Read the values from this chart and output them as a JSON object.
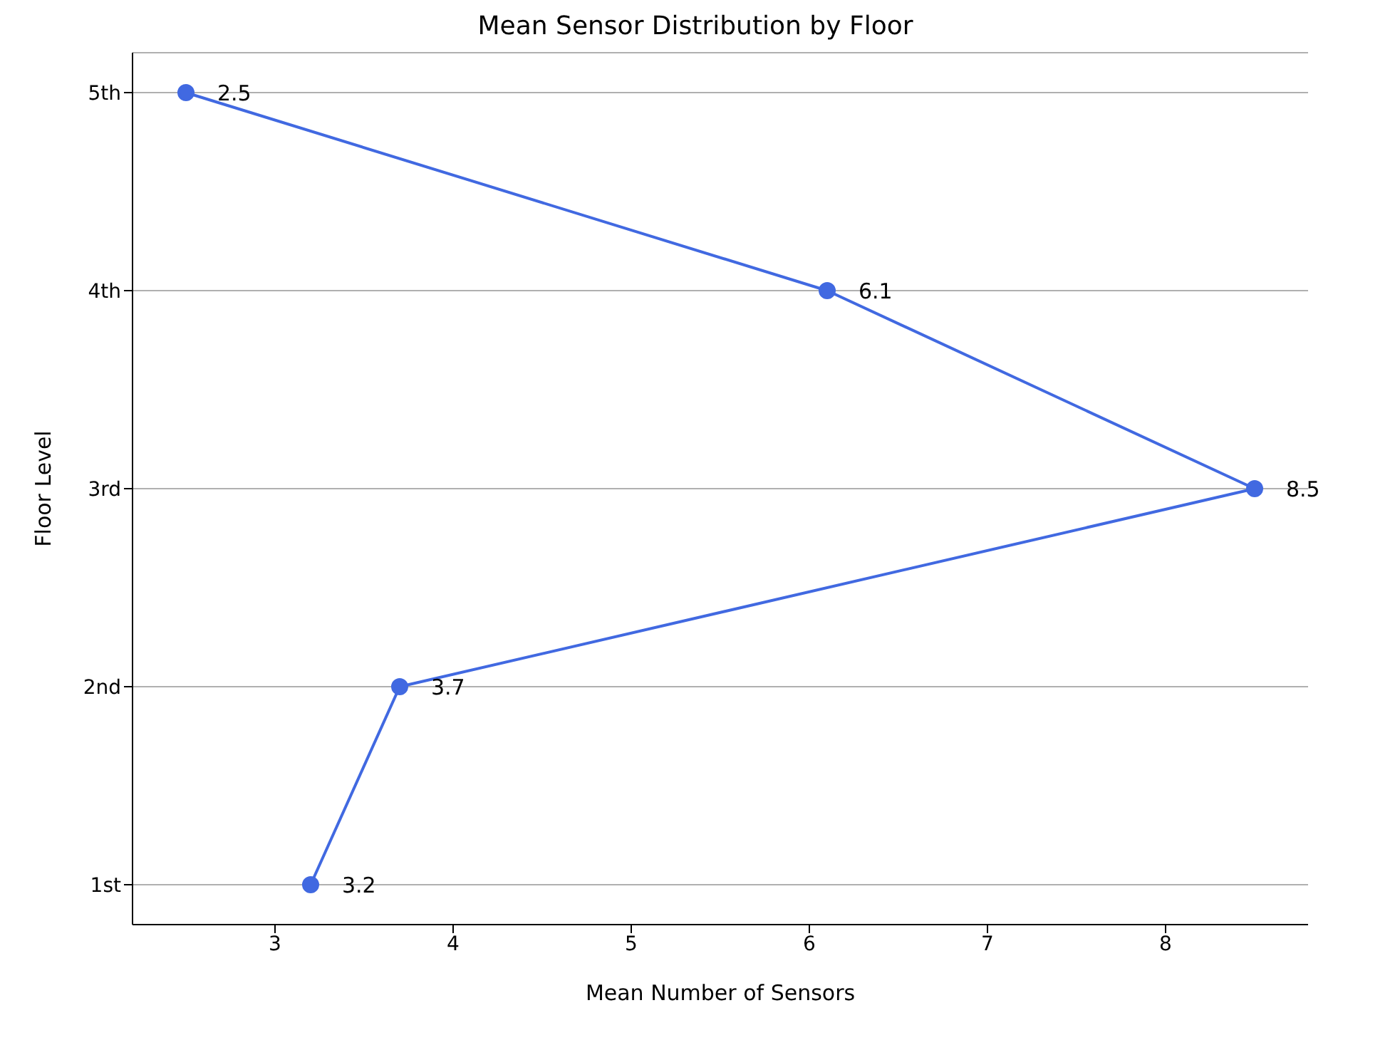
{
  "chart_data": {
    "type": "line",
    "orientation": "horizontal",
    "title": "Mean Sensor Distribution by Floor",
    "xlabel": "Mean Number of Sensors",
    "ylabel": "Floor Level",
    "categories": [
      "5th",
      "4th",
      "3rd",
      "2nd",
      "1st"
    ],
    "series": [
      {
        "color": "#4169e1",
        "values": [
          2.5,
          6.1,
          8.5,
          3.7,
          3.2
        ]
      }
    ],
    "xlim": [
      2.2,
      8.8
    ],
    "xticks": [
      3,
      4,
      5,
      6,
      7,
      8
    ],
    "grid": "y",
    "data_labels": true,
    "marker": "circle"
  }
}
